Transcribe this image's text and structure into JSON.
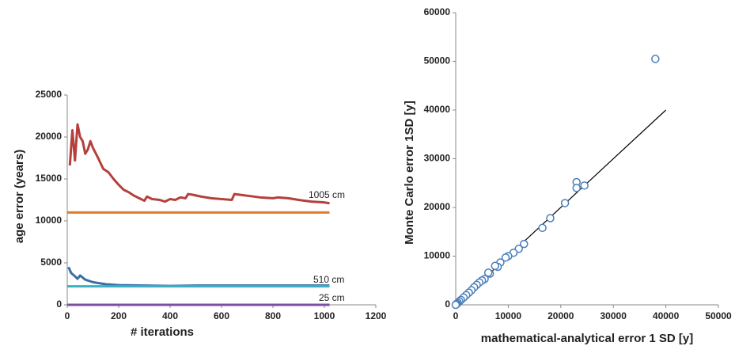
{
  "chart_data": [
    {
      "type": "line",
      "x_label": "# iterations",
      "y_label": "age error (years)",
      "xlim": [
        0,
        1200
      ],
      "xticks": [
        0,
        200,
        400,
        600,
        800,
        1000,
        1200
      ],
      "ylim": [
        0,
        25000
      ],
      "yticks": [
        0,
        5000,
        10000,
        15000,
        20000,
        25000
      ],
      "annotations": [
        "1005 cm",
        "510 cm",
        "25 cm"
      ],
      "series": [
        {
          "color": "#b5403b",
          "x": [
            10,
            20,
            30,
            40,
            50,
            60,
            70,
            80,
            90,
            100,
            120,
            140,
            160,
            180,
            200,
            220,
            240,
            260,
            280,
            300,
            310,
            330,
            360,
            380,
            400,
            420,
            440,
            460,
            470,
            490,
            520,
            560,
            600,
            640,
            650,
            700,
            750,
            800,
            820,
            860,
            900,
            950,
            1000,
            1020
          ],
          "values": [
            16600,
            20800,
            17200,
            21500,
            20000,
            19500,
            18000,
            18500,
            19500,
            18700,
            17500,
            16200,
            15800,
            15000,
            14300,
            13700,
            13400,
            13000,
            12700,
            12400,
            12900,
            12600,
            12500,
            12300,
            12600,
            12500,
            12800,
            12700,
            13200,
            13100,
            12900,
            12700,
            12600,
            12500,
            13200,
            13000,
            12800,
            12700,
            12800,
            12700,
            12500,
            12300,
            12200,
            12100
          ]
        },
        {
          "color": "#e07b29",
          "x": [
            0,
            1020
          ],
          "values": [
            11000,
            11000
          ]
        },
        {
          "color": "#3a6fa6",
          "x": [
            5,
            15,
            30,
            40,
            50,
            70,
            100,
            150,
            200,
            300,
            400,
            500,
            600,
            700,
            800,
            900,
            1020
          ],
          "values": [
            4500,
            3800,
            3400,
            3100,
            3500,
            3000,
            2700,
            2450,
            2350,
            2300,
            2250,
            2300,
            2300,
            2300,
            2300,
            2300,
            2300
          ]
        },
        {
          "color": "#3ab0c4",
          "x": [
            0,
            1020
          ],
          "values": [
            2200,
            2200
          ]
        },
        {
          "color": "#7a4fa0",
          "x": [
            0,
            1020
          ],
          "values": [
            0,
            0
          ]
        }
      ]
    },
    {
      "type": "scatter",
      "x_label": "mathematical-analytical  error 1 SD [y]",
      "y_label": "Monte Carlo error  1SD [y]",
      "xlim": [
        0,
        50000
      ],
      "xticks": [
        0,
        10000,
        20000,
        30000,
        40000,
        50000
      ],
      "ylim": [
        0,
        60000
      ],
      "yticks": [
        0,
        10000,
        20000,
        30000,
        40000,
        50000,
        60000
      ],
      "color": "#4a7ebb",
      "x": [
        38000,
        23000,
        23000,
        24500,
        20800,
        18000,
        16500,
        13000,
        12000,
        11000,
        10000,
        9500,
        8500,
        8000,
        7500,
        6500,
        6200,
        5500,
        5000,
        4500,
        4000,
        3500,
        3000,
        2500,
        2000,
        1500,
        1000,
        700,
        400,
        200,
        100,
        0
      ],
      "values": [
        50500,
        25200,
        24000,
        24500,
        20900,
        17800,
        15800,
        12500,
        11500,
        10700,
        10000,
        9700,
        8700,
        7800,
        8000,
        6400,
        6600,
        5300,
        5000,
        4600,
        4100,
        3600,
        3000,
        2500,
        2000,
        1500,
        1000,
        700,
        400,
        200,
        100,
        0
      ],
      "fit_line": {
        "color": "#000000",
        "x": [
          0,
          40000
        ],
        "values": [
          0,
          40000
        ]
      }
    }
  ]
}
